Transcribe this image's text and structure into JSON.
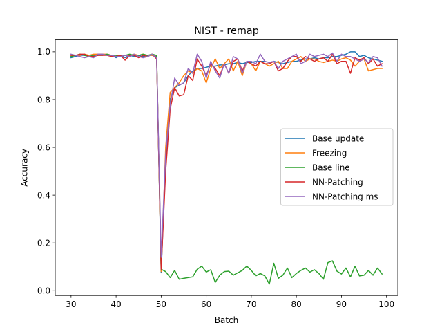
{
  "chart_data": {
    "type": "line",
    "title": "NIST - remap",
    "xlabel": "Batch",
    "ylabel": "Accuracy",
    "xlim": [
      26.5,
      102.5
    ],
    "ylim": [
      -0.02,
      1.05
    ],
    "xticks": [
      30,
      40,
      50,
      60,
      70,
      80,
      90,
      100
    ],
    "yticks": [
      0.0,
      0.2,
      0.4,
      0.6,
      0.8,
      1.0
    ],
    "grid": false,
    "legend_position": "center-right",
    "x": [
      30,
      31,
      32,
      33,
      34,
      35,
      36,
      37,
      38,
      39,
      40,
      41,
      42,
      43,
      44,
      45,
      46,
      47,
      48,
      49,
      50,
      51,
      52,
      53,
      54,
      55,
      56,
      57,
      58,
      59,
      60,
      61,
      62,
      63,
      64,
      65,
      66,
      67,
      68,
      69,
      70,
      71,
      72,
      73,
      74,
      75,
      76,
      77,
      78,
      79,
      80,
      81,
      82,
      83,
      84,
      85,
      86,
      87,
      88,
      89,
      90,
      91,
      92,
      93,
      94,
      95,
      96,
      97,
      98,
      99
    ],
    "series": [
      {
        "name": "Base update",
        "color": "#1f77b4",
        "values": [
          0.975,
          0.98,
          0.985,
          0.985,
          0.98,
          0.985,
          0.99,
          0.99,
          0.985,
          0.985,
          0.975,
          0.985,
          0.975,
          0.985,
          0.98,
          0.985,
          0.98,
          0.985,
          0.985,
          0.98,
          0.075,
          0.55,
          0.8,
          0.85,
          0.86,
          0.87,
          0.9,
          0.92,
          0.93,
          0.93,
          0.935,
          0.94,
          0.94,
          0.945,
          0.945,
          0.95,
          0.95,
          0.955,
          0.95,
          0.955,
          0.955,
          0.96,
          0.96,
          0.96,
          0.955,
          0.96,
          0.955,
          0.95,
          0.955,
          0.96,
          0.96,
          0.965,
          0.97,
          0.97,
          0.975,
          0.97,
          0.975,
          0.975,
          0.98,
          0.98,
          0.985,
          0.99,
          1.0,
          1.0,
          0.98,
          0.985,
          0.975,
          0.97,
          0.965,
          0.96
        ]
      },
      {
        "name": "Freezing",
        "color": "#ff7f0e",
        "values": [
          0.985,
          0.985,
          0.985,
          0.99,
          0.985,
          0.99,
          0.99,
          0.99,
          0.99,
          0.985,
          0.985,
          0.98,
          0.985,
          0.985,
          0.99,
          0.985,
          0.99,
          0.985,
          0.985,
          0.985,
          0.08,
          0.6,
          0.83,
          0.85,
          0.87,
          0.9,
          0.92,
          0.91,
          0.93,
          0.92,
          0.87,
          0.93,
          0.97,
          0.93,
          0.95,
          0.97,
          0.92,
          0.96,
          0.9,
          0.96,
          0.95,
          0.92,
          0.96,
          0.95,
          0.94,
          0.95,
          0.96,
          0.93,
          0.93,
          0.96,
          0.97,
          0.98,
          0.96,
          0.97,
          0.97,
          0.96,
          0.955,
          0.96,
          0.965,
          0.96,
          0.97,
          0.975,
          0.965,
          0.94,
          0.96,
          0.97,
          0.92,
          0.925,
          0.93,
          0.93
        ]
      },
      {
        "name": "Base line",
        "color": "#2ca02c",
        "values": [
          0.98,
          0.985,
          0.99,
          0.985,
          0.98,
          0.985,
          0.985,
          0.985,
          0.99,
          0.985,
          0.985,
          0.98,
          0.985,
          0.99,
          0.985,
          0.985,
          0.99,
          0.985,
          0.99,
          0.985,
          0.09,
          0.08,
          0.055,
          0.085,
          0.048,
          0.052,
          0.055,
          0.058,
          0.09,
          0.103,
          0.078,
          0.088,
          0.035,
          0.065,
          0.08,
          0.082,
          0.065,
          0.075,
          0.085,
          0.103,
          0.085,
          0.062,
          0.072,
          0.062,
          0.028,
          0.115,
          0.052,
          0.065,
          0.095,
          0.055,
          0.072,
          0.085,
          0.095,
          0.078,
          0.088,
          0.072,
          0.048,
          0.118,
          0.125,
          0.082,
          0.07,
          0.095,
          0.058,
          0.102,
          0.062,
          0.065,
          0.085,
          0.065,
          0.095,
          0.07
        ]
      },
      {
        "name": "NN-Patching",
        "color": "#d62728",
        "values": [
          0.985,
          0.985,
          0.99,
          0.99,
          0.98,
          0.98,
          0.985,
          0.985,
          0.985,
          0.98,
          0.98,
          0.985,
          0.965,
          0.985,
          0.985,
          0.975,
          0.985,
          0.98,
          0.99,
          0.97,
          0.09,
          0.5,
          0.76,
          0.85,
          0.815,
          0.82,
          0.9,
          0.88,
          0.97,
          0.94,
          0.9,
          0.95,
          0.93,
          0.9,
          0.95,
          0.91,
          0.96,
          0.97,
          0.92,
          0.96,
          0.95,
          0.94,
          0.96,
          0.95,
          0.95,
          0.96,
          0.92,
          0.93,
          0.96,
          0.98,
          0.98,
          0.96,
          0.98,
          0.97,
          0.96,
          0.97,
          0.975,
          0.96,
          0.99,
          0.95,
          0.96,
          0.96,
          0.91,
          0.975,
          0.965,
          0.975,
          0.95,
          0.97,
          0.94,
          0.95
        ]
      },
      {
        "name": "NN-Patching ms",
        "color": "#9467bd",
        "values": [
          0.99,
          0.985,
          0.98,
          0.975,
          0.98,
          0.975,
          0.99,
          0.99,
          0.985,
          0.985,
          0.98,
          0.98,
          0.985,
          0.98,
          0.99,
          0.98,
          0.975,
          0.98,
          0.99,
          0.975,
          0.14,
          0.57,
          0.78,
          0.89,
          0.86,
          0.87,
          0.93,
          0.91,
          0.99,
          0.96,
          0.89,
          0.96,
          0.92,
          0.89,
          0.95,
          0.91,
          0.98,
          0.97,
          0.91,
          0.96,
          0.96,
          0.95,
          0.99,
          0.96,
          0.955,
          0.96,
          0.93,
          0.96,
          0.97,
          0.98,
          0.99,
          0.95,
          0.96,
          0.99,
          0.98,
          0.985,
          0.99,
          0.98,
          0.995,
          0.96,
          0.99,
          0.98,
          0.98,
          0.97,
          0.96,
          0.97,
          0.955,
          0.98,
          0.975,
          0.94
        ]
      }
    ]
  }
}
